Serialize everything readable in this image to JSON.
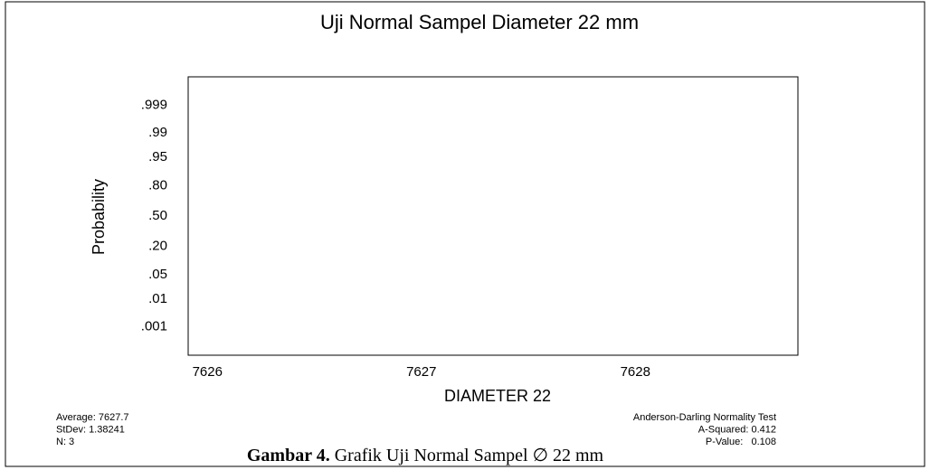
{
  "chart_data": {
    "type": "probability",
    "title": "Uji Normal Sampel Diameter 22 mm",
    "x_label": "DIAMETER 22",
    "y_label": "Probability",
    "x": [],
    "values": [],
    "xlim": [
      7625.91,
      7628.76
    ],
    "xticks": [
      7626,
      7627,
      7628
    ],
    "ylim": [
      5e-05,
      0.99995
    ],
    "yticks": [
      {
        "value": 0.999,
        "label": ".999"
      },
      {
        "value": 0.99,
        "label": ".99"
      },
      {
        "value": 0.95,
        "label": ".95"
      },
      {
        "value": 0.8,
        "label": ".80"
      },
      {
        "value": 0.5,
        "label": ".50"
      },
      {
        "value": 0.2,
        "label": ".20"
      },
      {
        "value": 0.05,
        "label": ".05"
      },
      {
        "value": 0.01,
        "label": ".01"
      },
      {
        "value": 0.001,
        "label": ".001"
      }
    ],
    "stats_left": [
      "Average: 7627.7",
      "StDev: 1.38241",
      "N: 3"
    ],
    "stats_right": [
      "Anderson-Darling Normality Test",
      "A-Squared: 0.412",
      "P-Value:   0.108"
    ],
    "caption": {
      "label": "Gambar 4.",
      "text": " Grafik Uji Normal Sampel ∅ 22 mm"
    }
  }
}
